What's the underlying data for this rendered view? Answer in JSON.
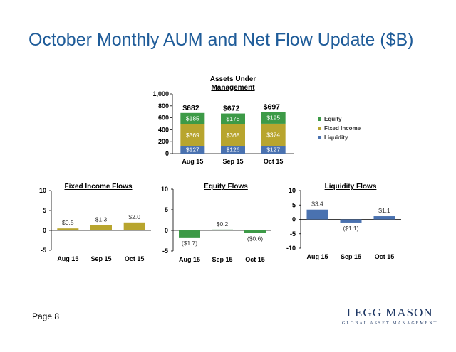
{
  "title": "October Monthly AUM and Net Flow Update ($B)",
  "page_label": "Page 8",
  "logo": {
    "main": "LEGG MASON",
    "sub": "GLOBAL ASSET MANAGEMENT"
  },
  "colors": {
    "equity": "#3d9a47",
    "fixed_income": "#b8a52e",
    "liquidity": "#4a72b0",
    "title": "#1f5c99"
  },
  "chart_data": [
    {
      "type": "bar",
      "stacked": true,
      "title": "Assets Under Management",
      "title_lines": [
        "Assets Under",
        "Management"
      ],
      "categories": [
        "Aug 15",
        "Sep 15",
        "Oct 15"
      ],
      "ylim": [
        0,
        1000
      ],
      "yticks": [
        0,
        200,
        400,
        600,
        800,
        1000
      ],
      "ytick_labels": [
        "0",
        "200",
        "400",
        "600",
        "800",
        "1,000"
      ],
      "totals": [
        "$682",
        "$672",
        "$697"
      ],
      "series": [
        {
          "name": "Liquidity",
          "values": [
            127,
            126,
            127
          ],
          "labels": [
            "$127",
            "$126",
            "$127"
          ]
        },
        {
          "name": "Fixed Income",
          "values": [
            369,
            368,
            374
          ],
          "labels": [
            "$369",
            "$368",
            "$374"
          ]
        },
        {
          "name": "Equity",
          "values": [
            185,
            178,
            195
          ],
          "labels": [
            "$185",
            "$178",
            "$195"
          ]
        }
      ],
      "legend": [
        "Equity",
        "Fixed Income",
        "Liquidity"
      ],
      "legend_position": "right"
    },
    {
      "type": "bar",
      "title": "Fixed Income Flows",
      "categories": [
        "Aug 15",
        "Sep 15",
        "Oct 15"
      ],
      "values": [
        0.5,
        1.3,
        2.0
      ],
      "labels": [
        "$0.5",
        "$1.3",
        "$2.0"
      ],
      "ylim": [
        -5,
        10
      ],
      "yticks": [
        -5,
        0,
        5,
        10
      ]
    },
    {
      "type": "bar",
      "title": "Equity Flows",
      "categories": [
        "Aug 15",
        "Sep 15",
        "Oct 15"
      ],
      "values": [
        -1.7,
        0.2,
        -0.6
      ],
      "labels": [
        "($1.7)",
        "$0.2",
        "($0.6)"
      ],
      "ylim": [
        -5,
        10
      ],
      "yticks": [
        -5,
        0,
        5,
        10
      ]
    },
    {
      "type": "bar",
      "title": "Liquidity Flows",
      "categories": [
        "Aug 15",
        "Sep 15",
        "Oct 15"
      ],
      "values": [
        3.4,
        -1.1,
        1.1
      ],
      "labels": [
        "$3.4",
        "($1.1)",
        "$1.1"
      ],
      "ylim": [
        -10,
        10
      ],
      "yticks": [
        -10,
        -5,
        0,
        5,
        10
      ]
    }
  ]
}
